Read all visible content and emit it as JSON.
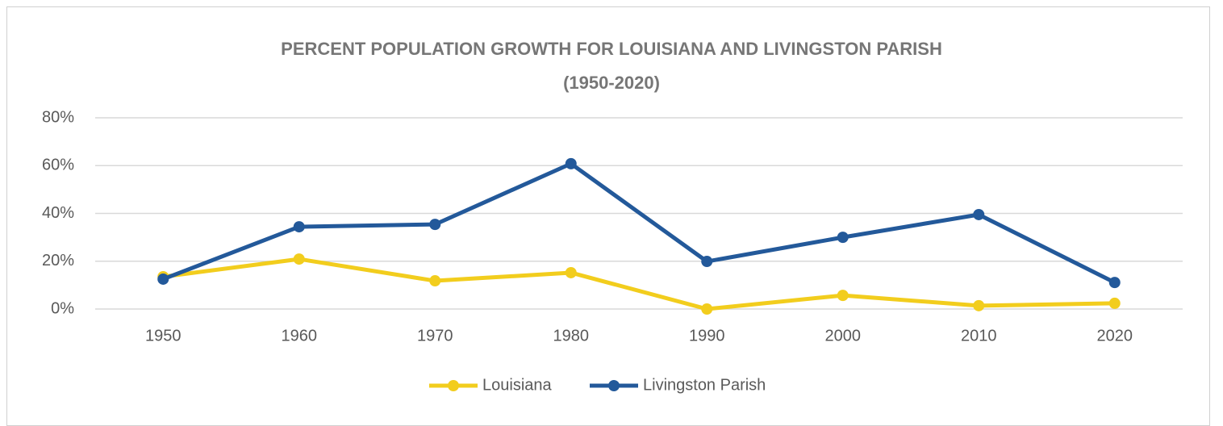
{
  "chart_data": {
    "type": "line",
    "title": "PERCENT POPULATION GROWTH FOR LOUISIANA AND LIVINGSTON PARISH\n(1950-2020)",
    "categories": [
      "1950",
      "1960",
      "1970",
      "1980",
      "1990",
      "2000",
      "2010",
      "2020"
    ],
    "series": [
      {
        "name": "Louisiana",
        "color": "#f2cd1d",
        "values": [
          13.5,
          20.9,
          11.8,
          15.2,
          0,
          5.7,
          1.4,
          2.4
        ]
      },
      {
        "name": "Livingston Parish",
        "color": "#23599a",
        "values": [
          12.5,
          34.4,
          35.4,
          60.8,
          19.9,
          30,
          39.5,
          11.1
        ]
      }
    ],
    "ylim": [
      0,
      80
    ],
    "yticks": [
      {
        "value": 0,
        "label": "0%"
      },
      {
        "value": 20,
        "label": "20%"
      },
      {
        "value": 40,
        "label": "40%"
      },
      {
        "value": 60,
        "label": "60%"
      },
      {
        "value": 80,
        "label": "80%"
      }
    ],
    "grid": true,
    "legend": "bottom"
  }
}
